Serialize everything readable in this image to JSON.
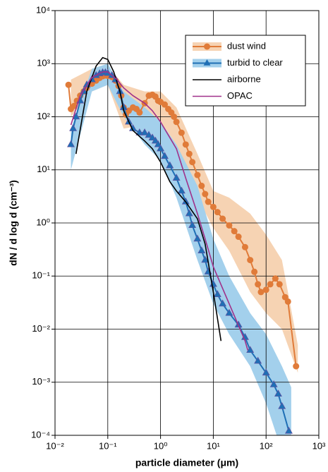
{
  "chart_data": {
    "type": "line",
    "x_label": "particle diameter (μm)",
    "y_label": "dN / d log d (cm⁻³)",
    "xscale": "log",
    "yscale": "log",
    "grid": true,
    "legend_position": "upper right",
    "xlim": [
      0.01,
      1000
    ],
    "ylim": [
      0.0001,
      10000
    ],
    "xticks": [
      {
        "value": 0.01,
        "label": "10⁻²"
      },
      {
        "value": 0.1,
        "label": "10⁻¹"
      },
      {
        "value": 1,
        "label": "10⁰"
      },
      {
        "value": 10,
        "label": "10¹"
      },
      {
        "value": 100,
        "label": "10²"
      },
      {
        "value": 1000,
        "label": "10³"
      }
    ],
    "yticks": [
      {
        "value": 0.0001,
        "label": "10⁻⁴"
      },
      {
        "value": 0.001,
        "label": "10⁻³"
      },
      {
        "value": 0.01,
        "label": "10⁻²"
      },
      {
        "value": 0.1,
        "label": "10⁻¹"
      },
      {
        "value": 1,
        "label": "10⁰"
      },
      {
        "value": 10,
        "label": "10¹"
      },
      {
        "value": 100,
        "label": "10²"
      },
      {
        "value": 1000,
        "label": "10³"
      },
      {
        "value": 10000,
        "label": "10⁴"
      }
    ],
    "series": [
      {
        "name": "dust wind",
        "color": "#e07b39",
        "band_color": "#f6d3b3",
        "marker": "circle",
        "x": [
          0.018,
          0.02,
          0.023,
          0.026,
          0.03,
          0.035,
          0.04,
          0.05,
          0.06,
          0.07,
          0.08,
          0.09,
          0.1,
          0.12,
          0.14,
          0.16,
          0.18,
          0.2,
          0.22,
          0.25,
          0.3,
          0.35,
          0.4,
          0.5,
          0.6,
          0.7,
          0.8,
          0.9,
          1.0,
          1.2,
          1.4,
          1.6,
          1.8,
          2.0,
          2.5,
          3.0,
          3.5,
          4,
          5,
          6,
          7,
          8,
          10,
          12,
          15,
          20,
          25,
          30,
          40,
          50,
          60,
          70,
          80,
          100,
          120,
          150,
          180,
          230,
          260,
          370
        ],
        "values": [
          400,
          140,
          160,
          200,
          250,
          300,
          350,
          420,
          480,
          540,
          580,
          600,
          590,
          560,
          480,
          380,
          250,
          150,
          110,
          130,
          150,
          140,
          120,
          180,
          250,
          260,
          240,
          200,
          190,
          170,
          140,
          120,
          100,
          80,
          50,
          30,
          20,
          14,
          8,
          5,
          3.5,
          2.5,
          2.0,
          1.6,
          1.2,
          0.9,
          0.7,
          0.55,
          0.35,
          0.2,
          0.12,
          0.07,
          0.05,
          0.055,
          0.07,
          0.09,
          0.07,
          0.04,
          0.033,
          0.002
        ],
        "band": {
          "x": [
            0.02,
            0.05,
            0.1,
            0.2,
            0.5,
            1,
            2,
            5,
            10,
            20,
            50,
            100,
            200,
            400
          ],
          "lower": [
            100,
            300,
            400,
            60,
            70,
            80,
            30,
            3,
            0.8,
            0.3,
            0.05,
            0.02,
            0.01,
            0.0015
          ],
          "upper": [
            500,
            800,
            900,
            400,
            300,
            300,
            150,
            20,
            4,
            3,
            1.5,
            0.6,
            0.2,
            0.005
          ]
        }
      },
      {
        "name": "turbid to clear",
        "color": "#1f6fb5",
        "band_color": "#a3d0ec",
        "marker": "triangle",
        "x": [
          0.02,
          0.022,
          0.025,
          0.03,
          0.035,
          0.04,
          0.05,
          0.06,
          0.07,
          0.08,
          0.09,
          0.1,
          0.12,
          0.14,
          0.17,
          0.2,
          0.25,
          0.3,
          0.4,
          0.5,
          0.6,
          0.7,
          0.8,
          0.9,
          1.0,
          1.2,
          1.5,
          2,
          2.5,
          3,
          3.5,
          4,
          5,
          6,
          7,
          8,
          10,
          12,
          15,
          20,
          30,
          40,
          50,
          70,
          100,
          140,
          170,
          200,
          270
        ],
        "values": [
          30,
          60,
          100,
          200,
          300,
          400,
          500,
          600,
          650,
          680,
          680,
          660,
          600,
          500,
          300,
          150,
          80,
          60,
          50,
          50,
          45,
          40,
          35,
          30,
          25,
          18,
          12,
          7,
          4,
          2.5,
          1.5,
          0.9,
          0.5,
          0.3,
          0.2,
          0.12,
          0.07,
          0.045,
          0.03,
          0.02,
          0.012,
          0.007,
          0.004,
          0.0025,
          0.0015,
          0.0009,
          0.0006,
          0.00035,
          0.00012
        ],
        "band": {
          "x": [
            0.02,
            0.05,
            0.1,
            0.2,
            0.5,
            1,
            2,
            5,
            10,
            20,
            50,
            100,
            200,
            300
          ],
          "lower": [
            10,
            300,
            400,
            100,
            30,
            15,
            3,
            0.2,
            0.03,
            0.008,
            0.002,
            0.0004,
            5e-05,
            0.0001
          ],
          "upper": [
            60,
            800,
            1000,
            300,
            150,
            80,
            30,
            5,
            0.5,
            0.1,
            0.02,
            0.008,
            0.002,
            0.0008
          ]
        }
      },
      {
        "name": "airborne",
        "color": "#000000",
        "x": [
          0.025,
          0.04,
          0.06,
          0.08,
          0.1,
          0.13,
          0.17,
          0.2,
          0.3,
          0.5,
          0.7,
          1.0,
          1.5,
          2,
          3,
          5,
          7,
          10,
          14
        ],
        "values": [
          20,
          300,
          900,
          1300,
          1200,
          700,
          300,
          130,
          55,
          35,
          25,
          14,
          6,
          4,
          2.5,
          1.2,
          0.4,
          0.05,
          0.006
        ]
      },
      {
        "name": "OPAC",
        "color": "#a0318a",
        "x": [
          0.02,
          0.03,
          0.05,
          0.08,
          0.1,
          0.15,
          0.2,
          0.3,
          0.5,
          0.7,
          1,
          2,
          3,
          5,
          7,
          10,
          20,
          40,
          45
        ],
        "values": [
          70,
          250,
          550,
          700,
          700,
          500,
          350,
          250,
          180,
          130,
          80,
          25,
          7,
          1.5,
          0.5,
          0.15,
          0.03,
          0.006,
          0.004
        ]
      }
    ]
  }
}
